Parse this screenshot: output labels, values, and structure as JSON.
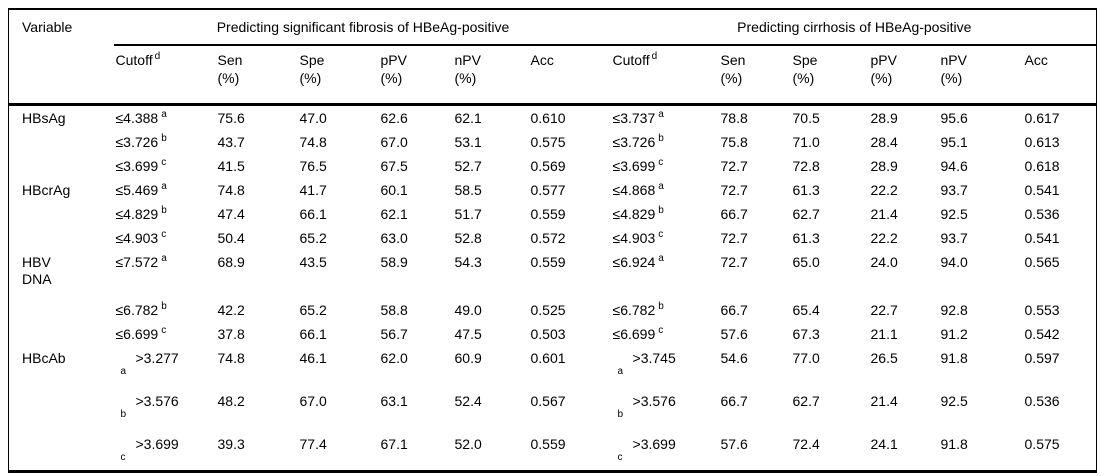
{
  "table": {
    "variable_header": "Variable",
    "groups": [
      {
        "title": "Predicting significant fibrosis of HBeAg-positive"
      },
      {
        "title": "Predicting cirrhosis of HBeAg-positive"
      }
    ],
    "sub_columns": [
      {
        "label": "Cutoff",
        "sup": "d"
      },
      {
        "label": "Sen",
        "unit": "(%)"
      },
      {
        "label": "Spe",
        "unit": "(%)"
      },
      {
        "label": "pPV",
        "unit": "(%)"
      },
      {
        "label": "nPV",
        "unit": "(%)"
      },
      {
        "label": "Acc",
        "unit": ""
      }
    ],
    "rows": [
      {
        "variable": "HBsAg",
        "fibrosis": {
          "cutoff": "≤4.388",
          "sup": "a",
          "sen": "75.6",
          "spe": "47.0",
          "ppv": "62.6",
          "npv": "62.1",
          "acc": "0.610"
        },
        "cirrhosis": {
          "cutoff": "≤3.737",
          "sup": "a",
          "sen": "78.8",
          "spe": "70.5",
          "ppv": "28.9",
          "npv": "95.6",
          "acc": "0.617"
        }
      },
      {
        "variable": "",
        "fibrosis": {
          "cutoff": "≤3.726",
          "sup": "b",
          "sen": "43.7",
          "spe": "74.8",
          "ppv": "67.0",
          "npv": "53.1",
          "acc": "0.575"
        },
        "cirrhosis": {
          "cutoff": "≤3.726",
          "sup": "b",
          "sen": "75.8",
          "spe": "71.0",
          "ppv": "28.4",
          "npv": "95.1",
          "acc": "0.613"
        }
      },
      {
        "variable": "",
        "fibrosis": {
          "cutoff": "≤3.699",
          "sup": "c",
          "sen": "41.5",
          "spe": "76.5",
          "ppv": "67.5",
          "npv": "52.7",
          "acc": "0.569"
        },
        "cirrhosis": {
          "cutoff": "≤3.699",
          "sup": "c",
          "sen": "72.7",
          "spe": "72.8",
          "ppv": "28.9",
          "npv": "94.6",
          "acc": "0.618"
        }
      },
      {
        "variable": "HBcrAg",
        "fibrosis": {
          "cutoff": "≤5.469",
          "sup": "a",
          "sen": "74.8",
          "spe": "41.7",
          "ppv": "60.1",
          "npv": "58.5",
          "acc": "0.577"
        },
        "cirrhosis": {
          "cutoff": "≤4.868",
          "sup": "a",
          "sen": "72.7",
          "spe": "61.3",
          "ppv": "22.2",
          "npv": "93.7",
          "acc": "0.541"
        }
      },
      {
        "variable": "",
        "fibrosis": {
          "cutoff": "≤4.829",
          "sup": "b",
          "sen": "47.4",
          "spe": "66.1",
          "ppv": "62.1",
          "npv": "51.7",
          "acc": "0.559"
        },
        "cirrhosis": {
          "cutoff": "≤4.829",
          "sup": "b",
          "sen": "66.7",
          "spe": "62.7",
          "ppv": "21.4",
          "npv": "92.5",
          "acc": "0.536"
        }
      },
      {
        "variable": "",
        "fibrosis": {
          "cutoff": "≤4.903",
          "sup": "c",
          "sen": "50.4",
          "spe": "65.2",
          "ppv": "63.0",
          "npv": "52.8",
          "acc": "0.572"
        },
        "cirrhosis": {
          "cutoff": "≤4.903",
          "sup": "c",
          "sen": "72.7",
          "spe": "61.3",
          "ppv": "22.2",
          "npv": "93.7",
          "acc": "0.541"
        }
      },
      {
        "variable": "HBV DNA",
        "variable_lines": [
          "HBV",
          "DNA"
        ],
        "fibrosis": {
          "cutoff": "≤7.572",
          "sup": "a",
          "sen": "68.9",
          "spe": "43.5",
          "ppv": "58.9",
          "npv": "54.3",
          "acc": "0.559"
        },
        "cirrhosis": {
          "cutoff": "≤6.924",
          "sup": "a",
          "sen": "72.7",
          "spe": "65.0",
          "ppv": "24.0",
          "npv": "94.0",
          "acc": "0.565"
        }
      },
      {
        "variable": "",
        "fibrosis": {
          "cutoff": "≤6.782",
          "sup": "b",
          "sen": "42.2",
          "spe": "65.2",
          "ppv": "58.8",
          "npv": "49.0",
          "acc": "0.525"
        },
        "cirrhosis": {
          "cutoff": "≤6.782",
          "sup": "b",
          "sen": "66.7",
          "spe": "65.4",
          "ppv": "22.7",
          "npv": "92.8",
          "acc": "0.553"
        }
      },
      {
        "variable": "",
        "fibrosis": {
          "cutoff": "≤6.699",
          "sup": "c",
          "sen": "37.8",
          "spe": "66.1",
          "ppv": "56.7",
          "npv": "47.5",
          "acc": "0.503"
        },
        "cirrhosis": {
          "cutoff": "≤6.699",
          "sup": "c",
          "sen": "57.6",
          "spe": "67.3",
          "ppv": "21.1",
          "npv": "91.2",
          "acc": "0.542"
        }
      },
      {
        "variable": "HBcAb",
        "cutoff_wrapped": true,
        "fibrosis": {
          "cutoff": ">3.277",
          "sup": "a",
          "sen": "74.8",
          "spe": "46.1",
          "ppv": "62.0",
          "npv": "60.9",
          "acc": "0.601"
        },
        "cirrhosis": {
          "cutoff": ">3.745",
          "sup": "a",
          "sen": "54.6",
          "spe": "77.0",
          "ppv": "26.5",
          "npv": "91.8",
          "acc": "0.597"
        }
      },
      {
        "variable": "",
        "cutoff_wrapped": true,
        "fibrosis": {
          "cutoff": ">3.576",
          "sup": "b",
          "sen": "48.2",
          "spe": "67.0",
          "ppv": "63.1",
          "npv": "52.4",
          "acc": "0.567"
        },
        "cirrhosis": {
          "cutoff": ">3.576",
          "sup": "b",
          "sen": "66.7",
          "spe": "62.7",
          "ppv": "21.4",
          "npv": "92.5",
          "acc": "0.536"
        }
      },
      {
        "variable": "",
        "cutoff_wrapped": true,
        "fibrosis": {
          "cutoff": ">3.699",
          "sup": "c",
          "sen": "39.3",
          "spe": "77.4",
          "ppv": "67.1",
          "npv": "52.0",
          "acc": "0.559"
        },
        "cirrhosis": {
          "cutoff": ">3.699",
          "sup": "c",
          "sen": "57.6",
          "spe": "72.4",
          "ppv": "24.1",
          "npv": "91.8",
          "acc": "0.575"
        }
      }
    ]
  }
}
